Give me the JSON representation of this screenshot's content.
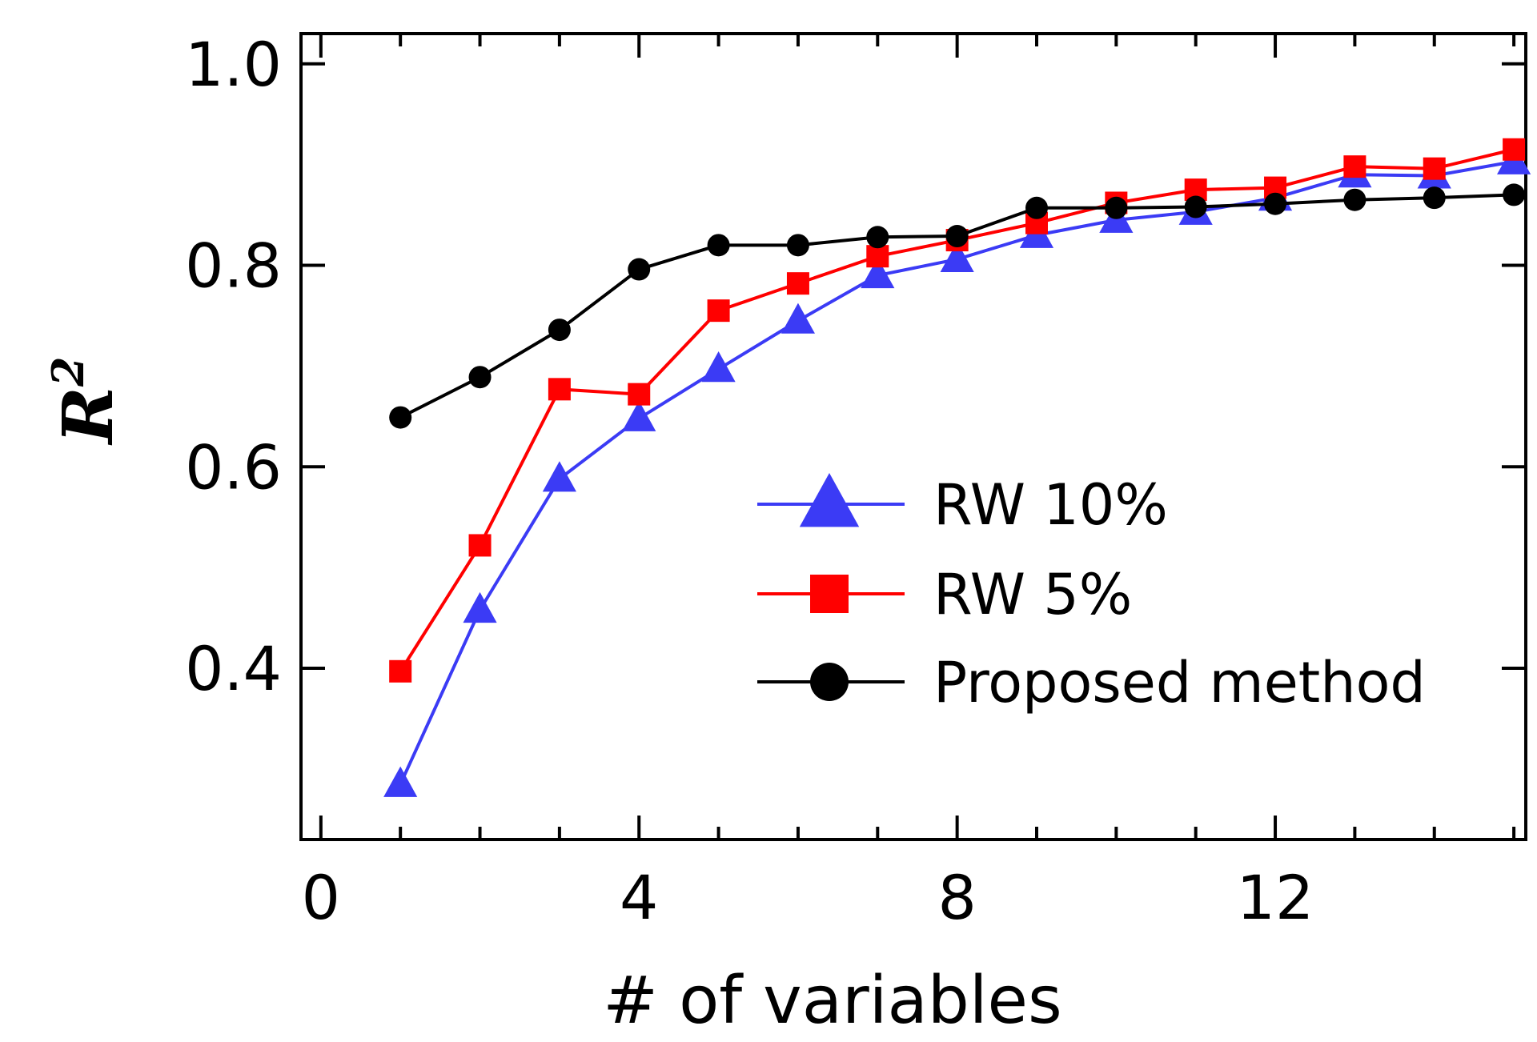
{
  "chart_data": {
    "type": "line",
    "title": "",
    "xlabel": "# of variables",
    "ylabel": "R",
    "ylabel_superscript": "2",
    "xlim": [
      -0.25,
      15.15
    ],
    "ylim": [
      0.23,
      1.03
    ],
    "x_ticks": [
      0,
      4,
      8,
      12
    ],
    "x_tick_labels": [
      "0",
      "4",
      "8",
      "12"
    ],
    "y_ticks": [
      0.4,
      0.6,
      0.8,
      1.0
    ],
    "y_tick_labels": [
      "0.4",
      "0.6",
      "0.8",
      "1.0"
    ],
    "legend_position": "center-right",
    "grid": false,
    "x": [
      1,
      2,
      3,
      4,
      5,
      6,
      7,
      8,
      9,
      10,
      11,
      12,
      13,
      14,
      15
    ],
    "series": [
      {
        "name": "RW 10%",
        "color": "#3b3bf5",
        "marker": "triangle",
        "values": [
          0.285,
          0.458,
          0.588,
          0.648,
          0.697,
          0.745,
          0.79,
          0.806,
          0.83,
          0.845,
          0.853,
          0.867,
          0.89,
          0.889,
          0.903
        ]
      },
      {
        "name": "RW 5%",
        "color": "#ff0000",
        "marker": "square",
        "values": [
          0.397,
          0.522,
          0.677,
          0.672,
          0.755,
          0.782,
          0.809,
          0.825,
          0.842,
          0.862,
          0.875,
          0.877,
          0.898,
          0.896,
          0.915
        ]
      },
      {
        "name": "Proposed method",
        "color": "#000000",
        "marker": "circle",
        "values": [
          0.649,
          0.689,
          0.736,
          0.796,
          0.82,
          0.82,
          0.828,
          0.829,
          0.857,
          0.857,
          0.858,
          0.861,
          0.865,
          0.867,
          0.87
        ]
      }
    ]
  }
}
